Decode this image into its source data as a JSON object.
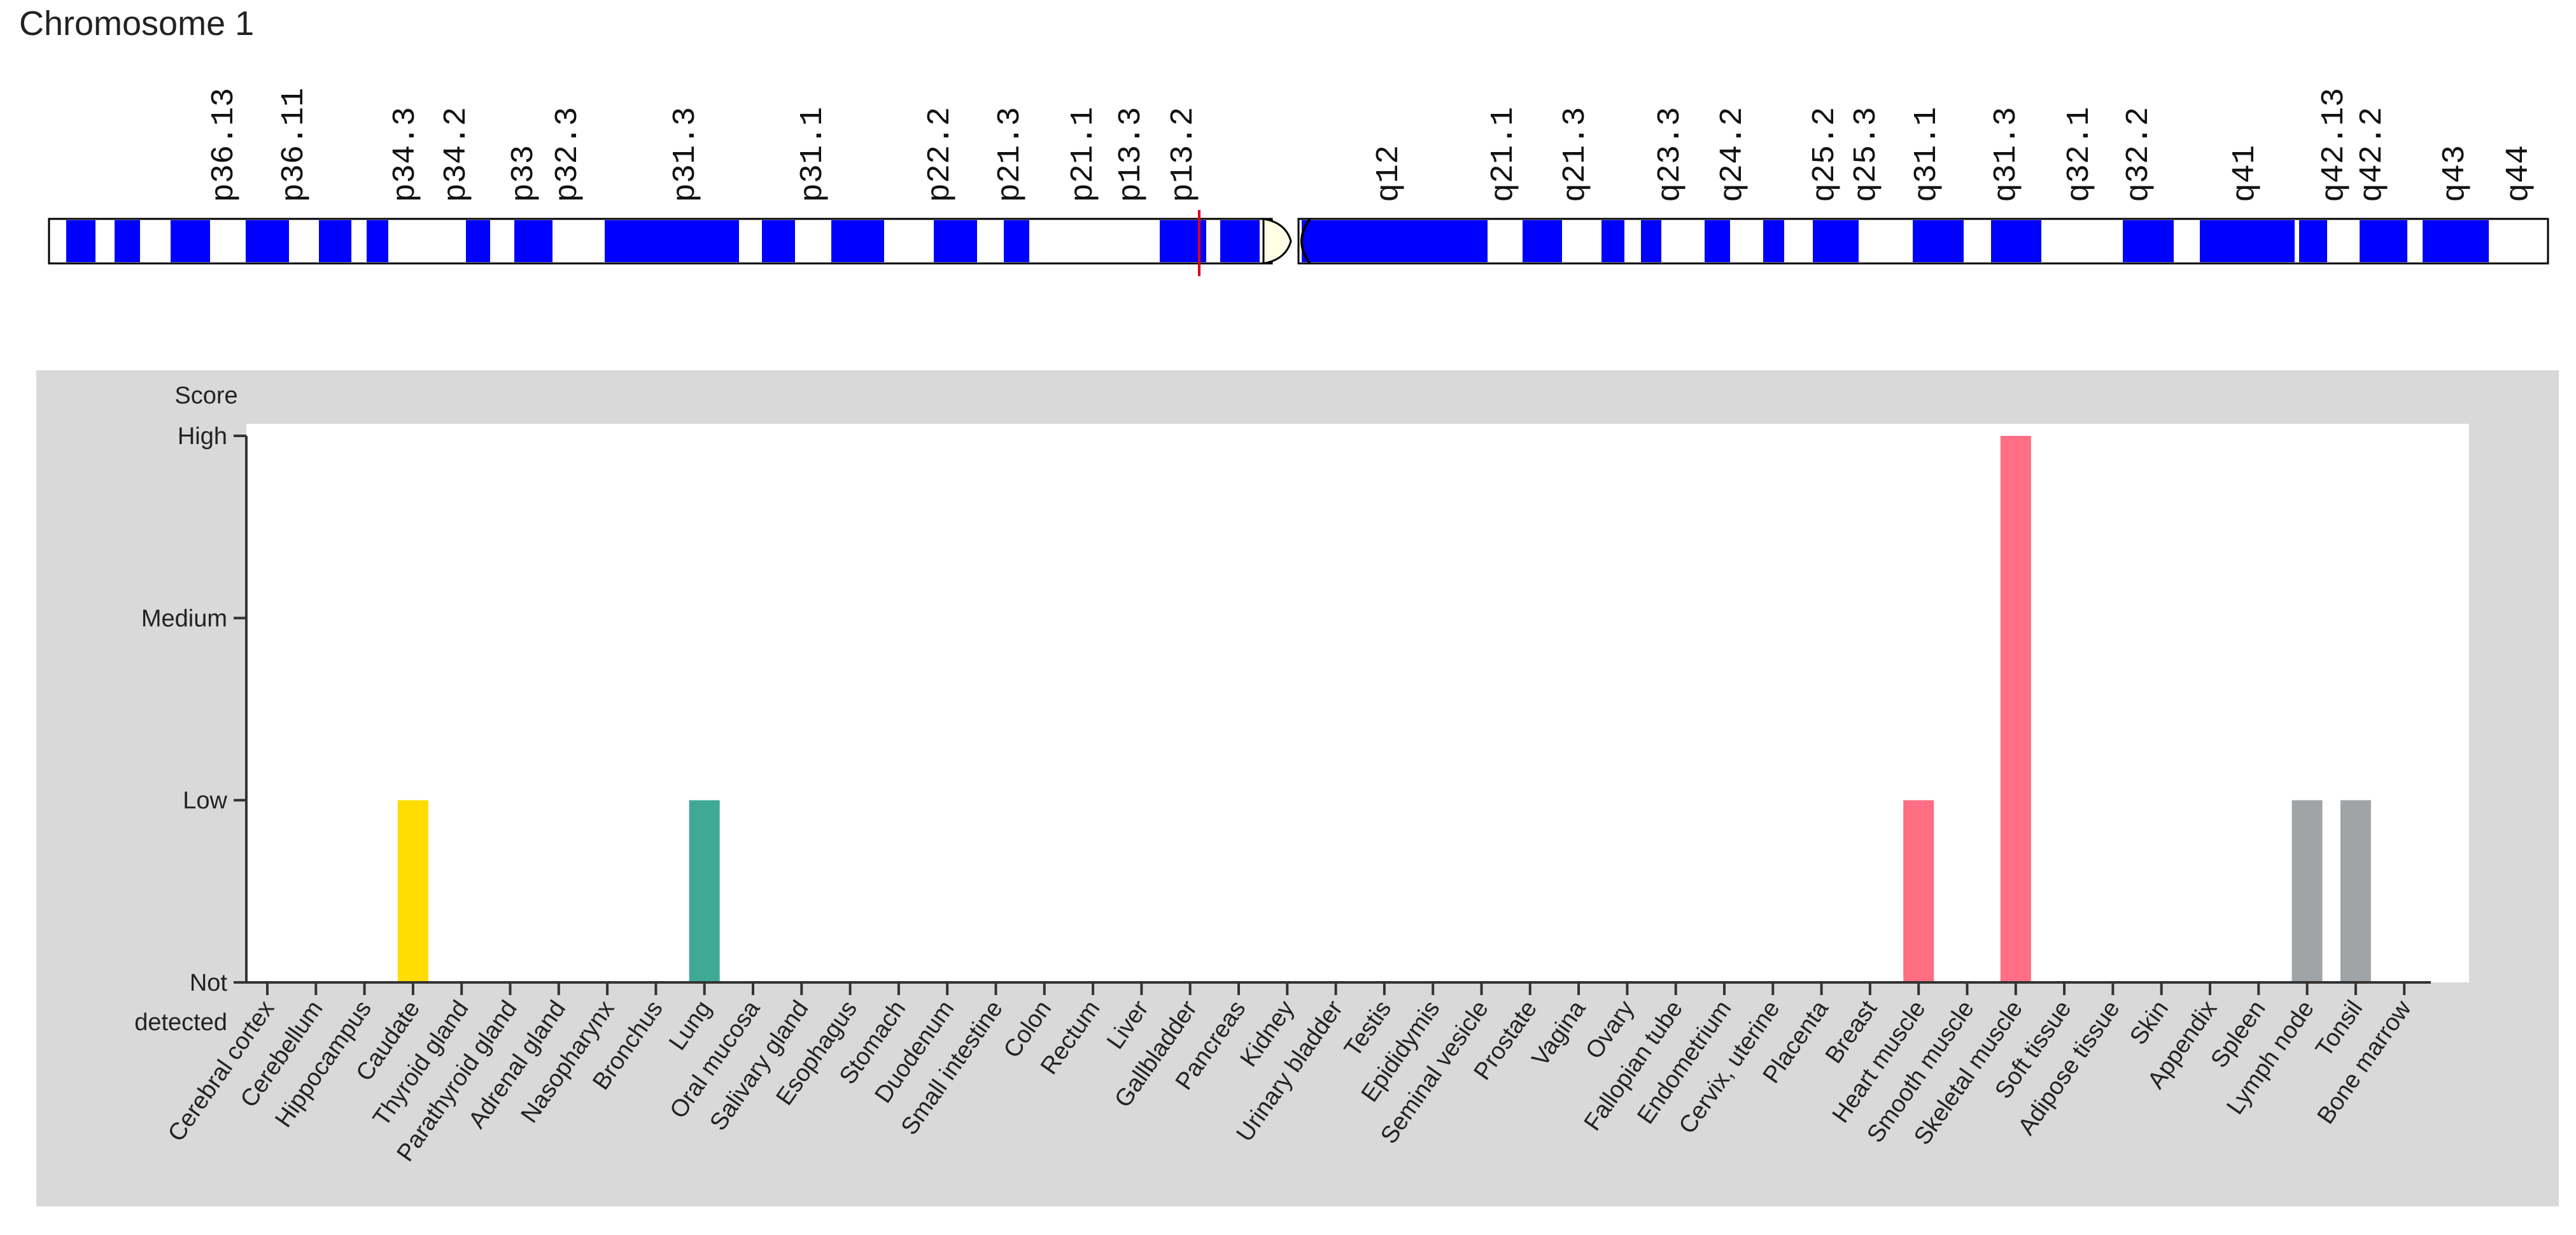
{
  "title": "Chromosome 1",
  "ideogram": {
    "p_bands": [
      "p36.13",
      "p36.11",
      "p34.3",
      "p34.2",
      "p33",
      "p32.3",
      "p31.3",
      "p31.1",
      "p22.2",
      "p21.3",
      "p21.1",
      "p13.3",
      "p13.2"
    ],
    "q_bands": [
      "q12",
      "q21.1",
      "q21.3",
      "q23.3",
      "q24.2",
      "q25.2",
      "q25.3",
      "q31.1",
      "q31.3",
      "q32.1",
      "q32.2",
      "q41",
      "q42.13",
      "q42.2",
      "q43",
      "q44"
    ],
    "band_color": "#0000ff",
    "marker_color": "#e0001b",
    "centromere_color": "#ffffe6"
  },
  "chart_data": {
    "type": "bar",
    "title": "",
    "ylabel": "Score",
    "xlabel": "",
    "y_levels": [
      "Not detected",
      "Low",
      "Medium",
      "High"
    ],
    "y_level_lines": [
      [
        "Not",
        "detected"
      ],
      [
        "Low"
      ],
      [
        "Medium"
      ],
      [
        "High"
      ]
    ],
    "ylim": [
      0,
      3
    ],
    "categories": [
      "Cerebral cortex",
      "Cerebellum",
      "Hippocampus",
      "Caudate",
      "Thyroid gland",
      "Parathyroid gland",
      "Adrenal gland",
      "Nasopharynx",
      "Bronchus",
      "Lung",
      "Oral mucosa",
      "Salivary gland",
      "Esophagus",
      "Stomach",
      "Duodenum",
      "Small intestine",
      "Colon",
      "Rectum",
      "Liver",
      "Gallbladder",
      "Pancreas",
      "Kidney",
      "Urinary bladder",
      "Testis",
      "Epididymis",
      "Seminal vesicle",
      "Prostate",
      "Vagina",
      "Ovary",
      "Fallopian tube",
      "Endometrium",
      "Cervix, uterine",
      "Placenta",
      "Breast",
      "Heart muscle",
      "Smooth muscle",
      "Skeletal muscle",
      "Soft tissue",
      "Adipose tissue",
      "Skin",
      "Appendix",
      "Spleen",
      "Lymph node",
      "Tonsil",
      "Bone marrow"
    ],
    "values": [
      0,
      0,
      0,
      1,
      0,
      0,
      0,
      0,
      0,
      1,
      0,
      0,
      0,
      0,
      0,
      0,
      0,
      0,
      0,
      0,
      0,
      0,
      0,
      0,
      0,
      0,
      0,
      0,
      0,
      0,
      0,
      0,
      0,
      0,
      1,
      0,
      3,
      0,
      0,
      0,
      0,
      0,
      1,
      1,
      0
    ],
    "colors": [
      "#a0a4a6",
      "#a0a4a6",
      "#a0a4a6",
      "#ffdd00",
      "#a0a4a6",
      "#a0a4a6",
      "#a0a4a6",
      "#a0a4a6",
      "#40a996",
      "#40a996",
      "#a0a4a6",
      "#a0a4a6",
      "#a0a4a6",
      "#a0a4a6",
      "#a0a4a6",
      "#a0a4a6",
      "#a0a4a6",
      "#a0a4a6",
      "#a0a4a6",
      "#a0a4a6",
      "#a0a4a6",
      "#a0a4a6",
      "#a0a4a6",
      "#a0a4a6",
      "#a0a4a6",
      "#a0a4a6",
      "#a0a4a6",
      "#a0a4a6",
      "#a0a4a6",
      "#a0a4a6",
      "#a0a4a6",
      "#a0a4a6",
      "#a0a4a6",
      "#a0a4a6",
      "#ff6e82",
      "#ff6e82",
      "#ff6e82",
      "#a0a4a6",
      "#a0a4a6",
      "#a0a4a6",
      "#a0a4a6",
      "#a0a4a6",
      "#a0a4a6",
      "#a0a4a6",
      "#a0a4a6"
    ]
  }
}
